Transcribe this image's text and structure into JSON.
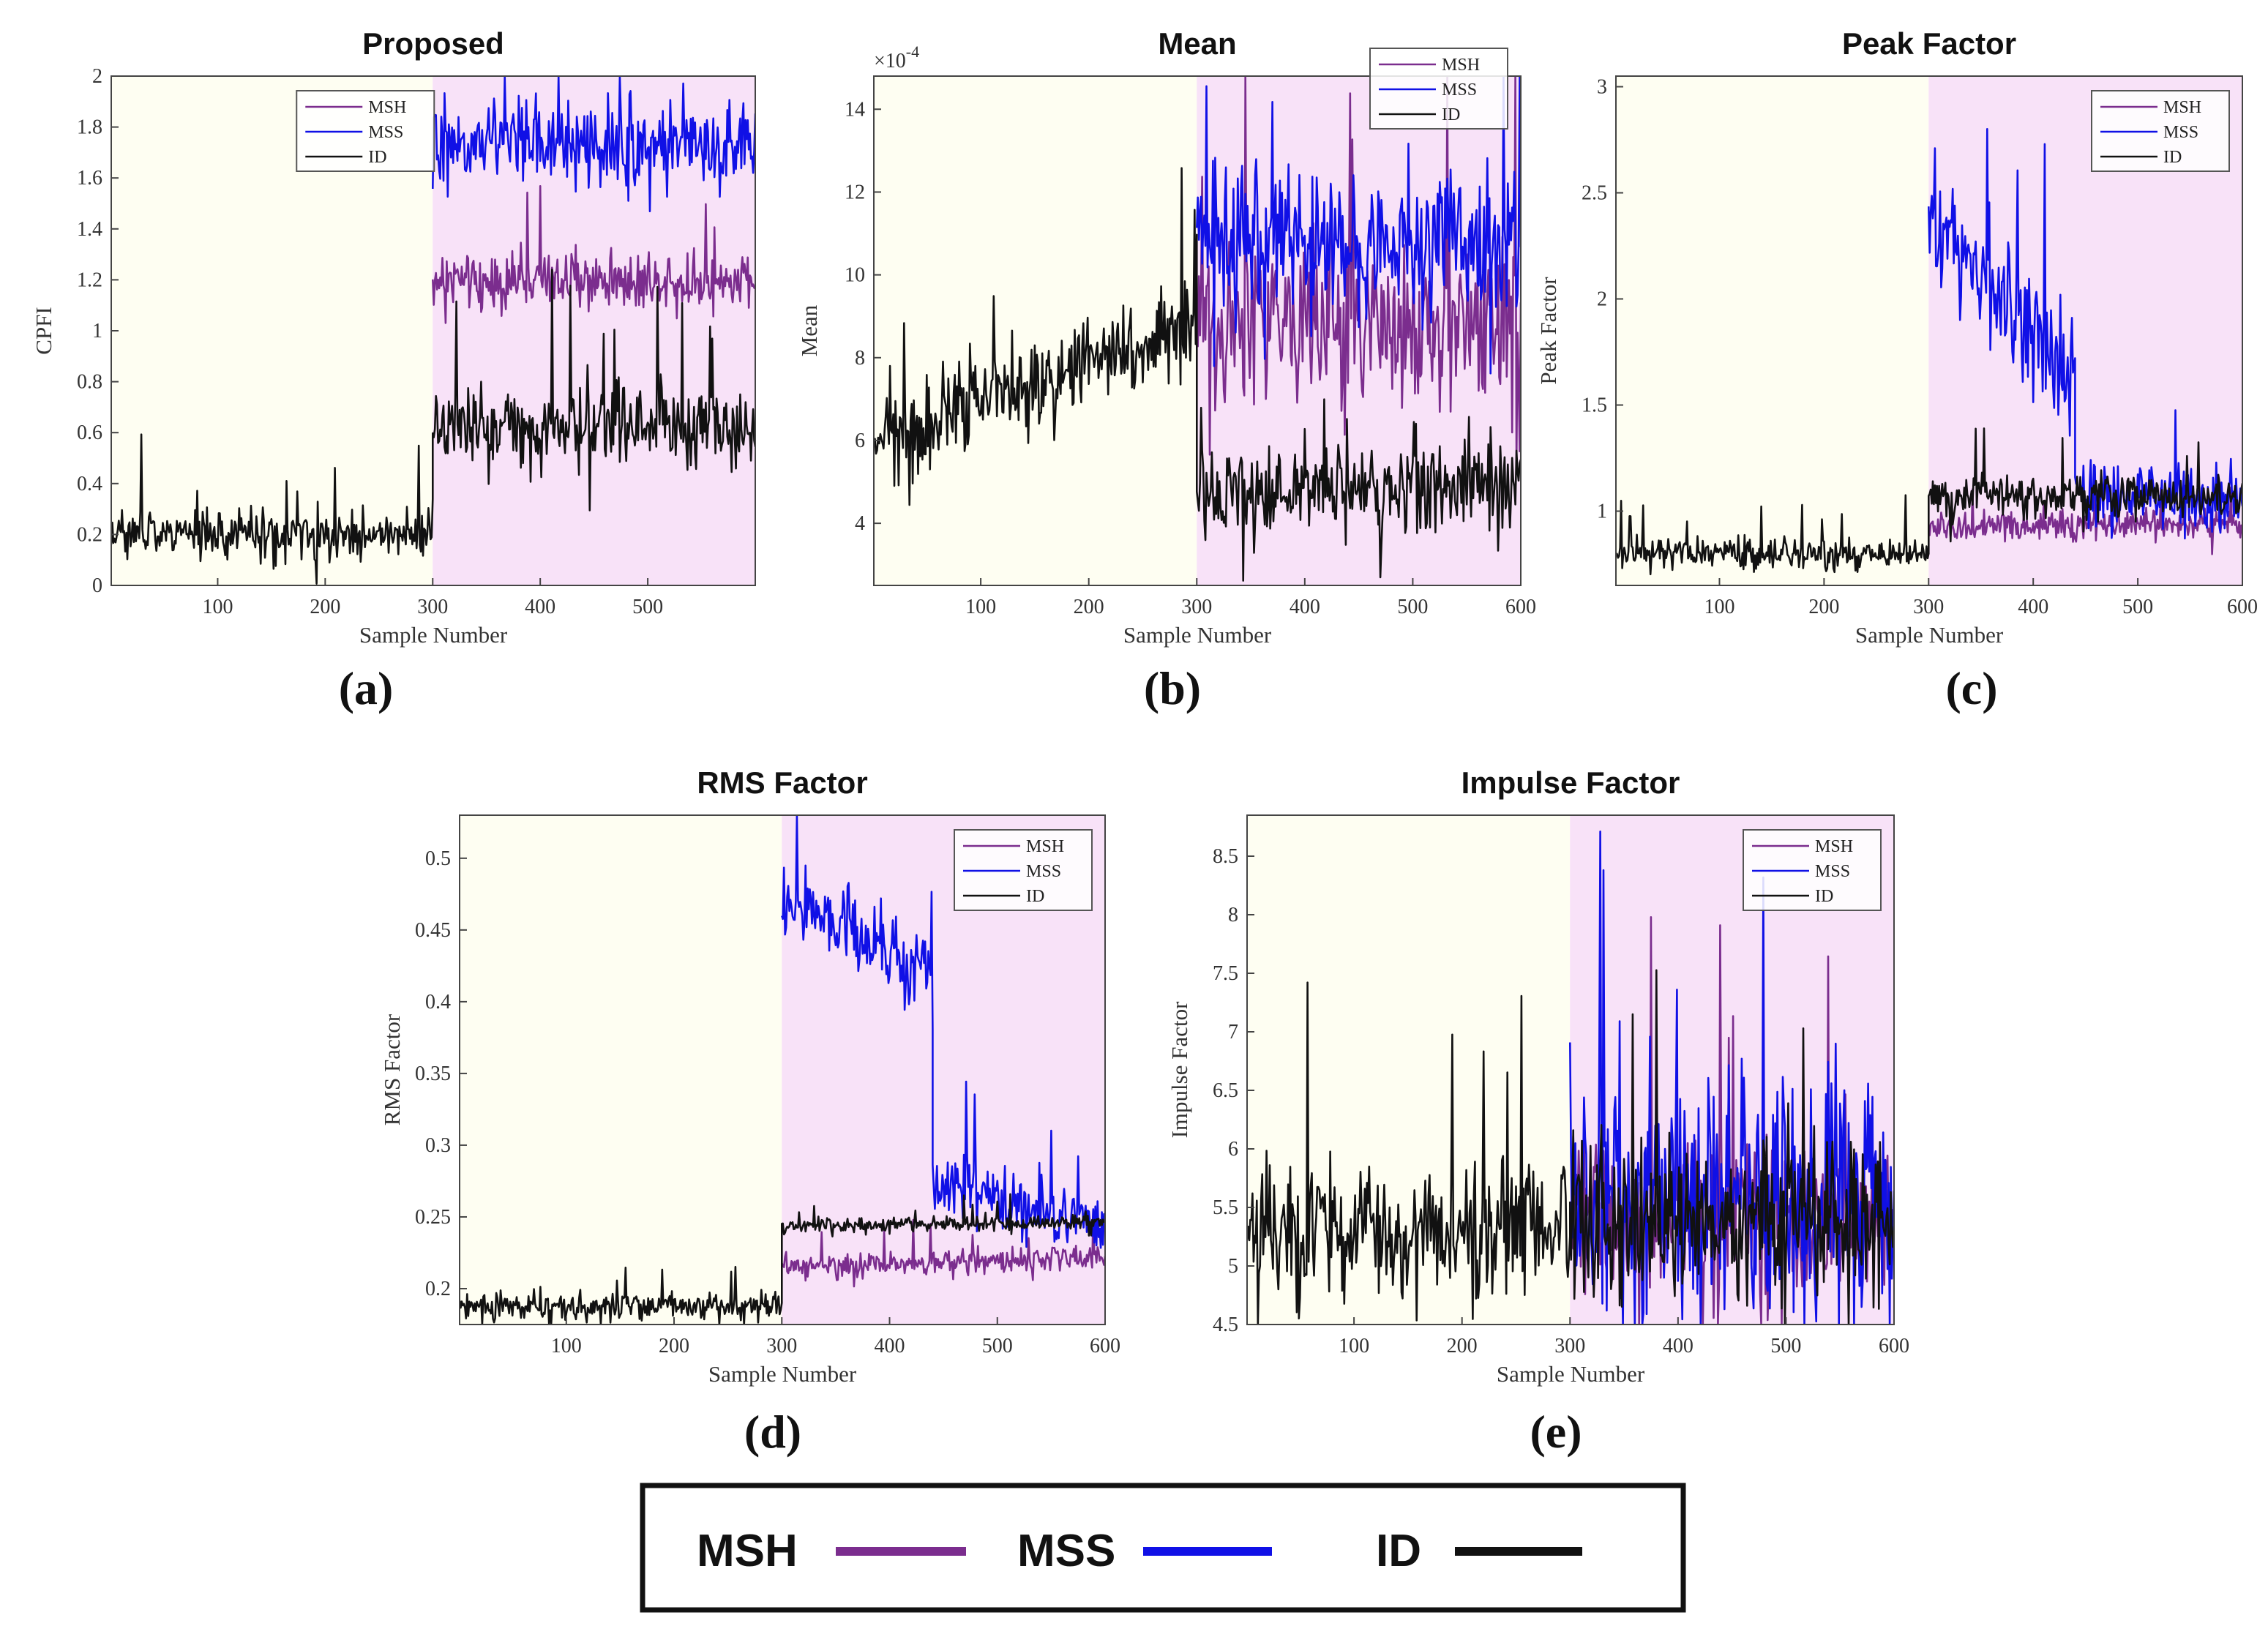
{
  "colors": {
    "MSH": "#7b2d8e",
    "MSS": "#1010e6",
    "ID": "#111111",
    "healthy_bg": "#fefef2",
    "fault_bg": "#f8e2f8"
  },
  "bottom_legend": [
    {
      "label": "MSH",
      "color": "#7b2d8e"
    },
    {
      "label": "MSS",
      "color": "#1010e6"
    },
    {
      "label": "ID",
      "color": "#111111"
    }
  ],
  "chart_data": [
    {
      "id": "a",
      "type": "line",
      "panel_label": "(a)",
      "title": "Proposed",
      "xlabel": "Sample Number",
      "ylabel": "CPFI",
      "exponent_label": "",
      "xlim": [
        1,
        600
      ],
      "ylim": [
        0,
        2
      ],
      "xticks": [
        100,
        200,
        300,
        400,
        500
      ],
      "yticks": [
        0,
        0.2,
        0.4,
        0.6,
        0.8,
        1,
        1.2,
        1.4,
        1.6,
        1.8,
        2
      ],
      "ytick_labels": [
        "0",
        "0.2",
        "0.4",
        "0.6",
        "0.8",
        "1",
        "1.2",
        "1.4",
        "1.6",
        "1.8",
        "2"
      ],
      "regions": [
        {
          "x0": 1,
          "x1": 300,
          "color": "#fefef2"
        },
        {
          "x0": 300,
          "x1": 600,
          "color": "#f8e2f8"
        }
      ],
      "legend": {
        "position": "top-center",
        "entries": [
          "MSH",
          "MSS",
          "ID"
        ]
      },
      "series": [
        {
          "name": "MSH",
          "color": "#7b2d8e",
          "x_start": 300,
          "x_end": 600,
          "level_start": 1.2,
          "level_end": 1.2,
          "noise": 0.08
        },
        {
          "name": "MSS",
          "color": "#1010e6",
          "x_start": 300,
          "x_end": 600,
          "level_start": 1.74,
          "level_end": 1.74,
          "noise": 0.12
        },
        {
          "name": "ID",
          "color": "#111111",
          "segments": [
            {
              "x_start": 1,
              "x_end": 300,
              "level_start": 0.2,
              "level_end": 0.2,
              "noise": 0.07
            },
            {
              "x_start": 300,
              "x_end": 600,
              "level_start": 0.63,
              "level_end": 0.63,
              "noise": 0.12
            }
          ]
        }
      ]
    },
    {
      "id": "b",
      "type": "line",
      "panel_label": "(b)",
      "title": "Mean",
      "xlabel": "Sample Number",
      "ylabel": "Mean",
      "exponent_label": "×10",
      "exponent_power": "-4",
      "xlim": [
        1,
        600
      ],
      "ylim": [
        2.5,
        14.8
      ],
      "xticks": [
        100,
        200,
        300,
        400,
        500,
        600
      ],
      "yticks": [
        4,
        6,
        8,
        10,
        12,
        14
      ],
      "ytick_labels": [
        "4",
        "6",
        "8",
        "10",
        "12",
        "14"
      ],
      "regions": [
        {
          "x0": 1,
          "x1": 300,
          "color": "#fefef2"
        },
        {
          "x0": 300,
          "x1": 600,
          "color": "#f8e2f8"
        }
      ],
      "legend": {
        "position": "top-right",
        "entries": [
          "MSH",
          "MSS",
          "ID"
        ]
      },
      "series": [
        {
          "name": "MSH",
          "color": "#7b2d8e",
          "x_start": 300,
          "x_end": 600,
          "level_start": 8.8,
          "level_end": 8.8,
          "noise": 1.5
        },
        {
          "name": "MSS",
          "color": "#1010e6",
          "x_start": 300,
          "x_end": 600,
          "level_start": 10.8,
          "level_end": 10.8,
          "noise": 1.2
        },
        {
          "name": "ID",
          "color": "#111111",
          "segments": [
            {
              "x_start": 1,
              "x_end": 300,
              "level_start": 6.0,
              "level_end": 8.8,
              "noise": 0.8
            },
            {
              "x_start": 300,
              "x_end": 600,
              "level_start": 4.8,
              "level_end": 5.0,
              "noise": 0.8
            }
          ]
        }
      ]
    },
    {
      "id": "c",
      "type": "line",
      "panel_label": "(c)",
      "title": "Peak Factor",
      "xlabel": "Sample Number",
      "ylabel": "Peak Factor",
      "exponent_label": "",
      "xlim": [
        1,
        600
      ],
      "ylim": [
        0.65,
        3.05
      ],
      "xticks": [
        100,
        200,
        300,
        400,
        500,
        600
      ],
      "yticks": [
        1,
        1.5,
        2,
        2.5,
        3
      ],
      "ytick_labels": [
        "1",
        "1.5",
        "2",
        "2.5",
        "3"
      ],
      "regions": [
        {
          "x0": 1,
          "x1": 300,
          "color": "#fefef2"
        },
        {
          "x0": 300,
          "x1": 600,
          "color": "#f8e2f8"
        }
      ],
      "legend": {
        "position": "top-right",
        "entries": [
          "MSH",
          "MSS",
          "ID"
        ]
      },
      "series": [
        {
          "name": "MSH",
          "color": "#7b2d8e",
          "x_start": 300,
          "x_end": 600,
          "level_start": 0.92,
          "level_end": 0.95,
          "noise": 0.05
        },
        {
          "name": "MSS",
          "color": "#1010e6",
          "segments": [
            {
              "x_start": 300,
              "x_end": 440,
              "level_start": 2.4,
              "level_end": 1.6,
              "noise": 0.2
            },
            {
              "x_start": 440,
              "x_end": 600,
              "level_start": 1.1,
              "level_end": 1.05,
              "noise": 0.12
            }
          ]
        },
        {
          "name": "ID",
          "color": "#111111",
          "segments": [
            {
              "x_start": 1,
              "x_end": 300,
              "level_start": 0.8,
              "level_end": 0.8,
              "noise": 0.05
            },
            {
              "x_start": 300,
              "x_end": 600,
              "level_start": 1.07,
              "level_end": 1.07,
              "noise": 0.07
            }
          ]
        }
      ]
    },
    {
      "id": "d",
      "type": "line",
      "panel_label": "(d)",
      "title": "RMS Factor",
      "xlabel": "Sample Number",
      "ylabel": "RMS Factor",
      "exponent_label": "",
      "xlim": [
        1,
        600
      ],
      "ylim": [
        0.175,
        0.53
      ],
      "xticks": [
        100,
        200,
        300,
        400,
        500,
        600
      ],
      "yticks": [
        0.2,
        0.25,
        0.3,
        0.35,
        0.4,
        0.45,
        0.5
      ],
      "ytick_labels": [
        "0.2",
        "0.25",
        "0.3",
        "0.35",
        "0.4",
        "0.45",
        "0.5"
      ],
      "regions": [
        {
          "x0": 1,
          "x1": 300,
          "color": "#fefef2"
        },
        {
          "x0": 300,
          "x1": 600,
          "color": "#f8e2f8"
        }
      ],
      "legend": {
        "position": "top-right",
        "entries": [
          "MSH",
          "MSS",
          "ID"
        ]
      },
      "series": [
        {
          "name": "MSH",
          "color": "#7b2d8e",
          "x_start": 300,
          "x_end": 600,
          "level_start": 0.215,
          "level_end": 0.222,
          "noise": 0.006
        },
        {
          "name": "MSS",
          "color": "#1010e6",
          "segments": [
            {
              "x_start": 300,
              "x_end": 440,
              "level_start": 0.47,
              "level_end": 0.42,
              "noise": 0.02
            },
            {
              "x_start": 440,
              "x_end": 600,
              "level_start": 0.275,
              "level_end": 0.245,
              "noise": 0.015
            }
          ]
        },
        {
          "name": "ID",
          "color": "#111111",
          "segments": [
            {
              "x_start": 1,
              "x_end": 300,
              "level_start": 0.188,
              "level_end": 0.188,
              "noise": 0.007
            },
            {
              "x_start": 300,
              "x_end": 600,
              "level_start": 0.243,
              "level_end": 0.247,
              "noise": 0.004
            }
          ]
        }
      ]
    },
    {
      "id": "e",
      "type": "line",
      "panel_label": "(e)",
      "title": "Impulse Factor",
      "xlabel": "Sample Number",
      "ylabel": "Impulse Factor",
      "exponent_label": "",
      "xlim": [
        1,
        600
      ],
      "ylim": [
        4.5,
        8.85
      ],
      "xticks": [
        100,
        200,
        300,
        400,
        500,
        600
      ],
      "yticks": [
        4.5,
        5,
        5.5,
        6,
        6.5,
        7,
        7.5,
        8,
        8.5
      ],
      "ytick_labels": [
        "4.5",
        "5",
        "5.5",
        "6",
        "6.5",
        "7",
        "7.5",
        "8",
        "8.5"
      ],
      "regions": [
        {
          "x0": 1,
          "x1": 300,
          "color": "#fefef2"
        },
        {
          "x0": 300,
          "x1": 600,
          "color": "#f8e2f8"
        }
      ],
      "legend": {
        "position": "top-right",
        "entries": [
          "MSH",
          "MSS",
          "ID"
        ]
      },
      "series": [
        {
          "name": "MSH",
          "color": "#7b2d8e",
          "x_start": 300,
          "x_end": 600,
          "level_start": 5.4,
          "level_end": 5.4,
          "noise": 0.5
        },
        {
          "name": "MSS",
          "color": "#1010e6",
          "x_start": 300,
          "x_end": 600,
          "level_start": 5.6,
          "level_end": 5.6,
          "noise": 0.75
        },
        {
          "name": "ID",
          "color": "#111111",
          "segments": [
            {
              "x_start": 1,
              "x_end": 300,
              "level_start": 5.3,
              "level_end": 5.3,
              "noise": 0.4
            },
            {
              "x_start": 300,
              "x_end": 600,
              "level_start": 5.4,
              "level_end": 5.4,
              "noise": 0.45
            }
          ]
        }
      ]
    }
  ]
}
